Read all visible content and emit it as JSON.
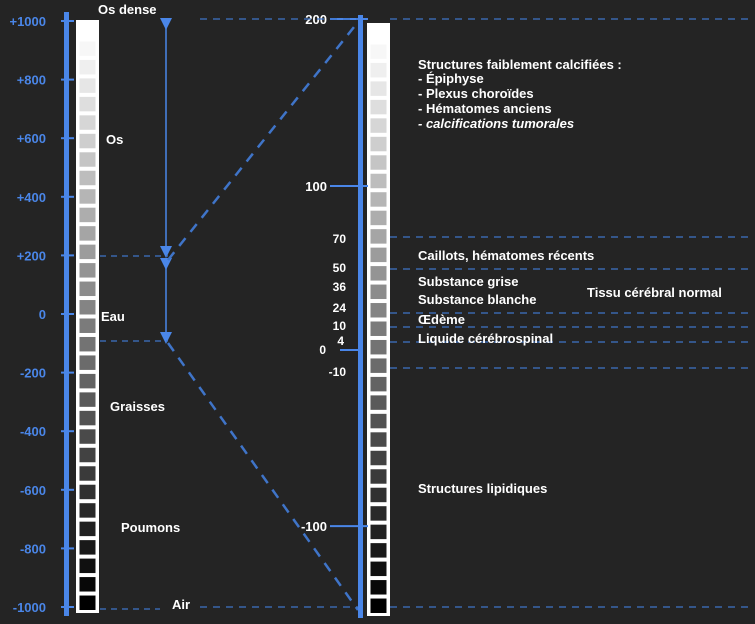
{
  "left_scale": {
    "ticks": [
      {
        "value": 1000,
        "label": "+1000"
      },
      {
        "value": 800,
        "label": "+800"
      },
      {
        "value": 600,
        "label": "+600"
      },
      {
        "value": 400,
        "label": "+400"
      },
      {
        "value": 200,
        "label": "+200"
      },
      {
        "value": 0,
        "label": "0"
      },
      {
        "value": -200,
        "label": "-200"
      },
      {
        "value": -400,
        "label": "-400"
      },
      {
        "value": -600,
        "label": "-600"
      },
      {
        "value": -800,
        "label": "-800"
      },
      {
        "value": -1000,
        "label": "-1000"
      }
    ],
    "labels": [
      {
        "text": "Os dense",
        "value": 1000
      },
      {
        "text": "Os",
        "value": 590
      },
      {
        "text": "Eau",
        "value": 0
      },
      {
        "text": "Graisses",
        "value": -300
      },
      {
        "text": "Poumons",
        "value": -720
      },
      {
        "text": "Air",
        "value": -1000
      }
    ],
    "range": [
      -1000,
      1000
    ],
    "steps": 32
  },
  "right_scale": {
    "major_ticks": [
      {
        "value": 200,
        "label": "200"
      },
      {
        "value": 100,
        "label": "100"
      },
      {
        "value": -100,
        "label": "-100"
      }
    ],
    "values": [
      {
        "value": 70,
        "label": "70"
      },
      {
        "value": 50,
        "label": "50"
      },
      {
        "value": 36,
        "label": "36"
      },
      {
        "value": 24,
        "label": "24"
      },
      {
        "value": 10,
        "label": "10"
      },
      {
        "value": 4,
        "label": "4"
      },
      {
        "value": 0,
        "label": "0"
      },
      {
        "value": -10,
        "label": "-10"
      }
    ],
    "range": [
      -150,
      200
    ],
    "steps": 32
  },
  "annotations": {
    "calcified_title": "Structures faiblement calcifiées :",
    "calcified_items": [
      "- Épiphyse",
      "- Plexus choroïdes",
      "- Hématomes anciens",
      "- calcifications tumorales"
    ],
    "clots": "Caillots, hématomes récents",
    "grey_matter": "Substance grise",
    "white_matter": "Substance blanche",
    "normal_tissue": "Tissu cérébral normal",
    "edema": "Œdème",
    "csf": "Liquide cérébrospinal",
    "lipid": "Structures lipidiques"
  },
  "colors": {
    "background": "#242424",
    "axis_blue": "#4a86e8",
    "text": "#ffffff",
    "dash": "#3f74c8"
  }
}
